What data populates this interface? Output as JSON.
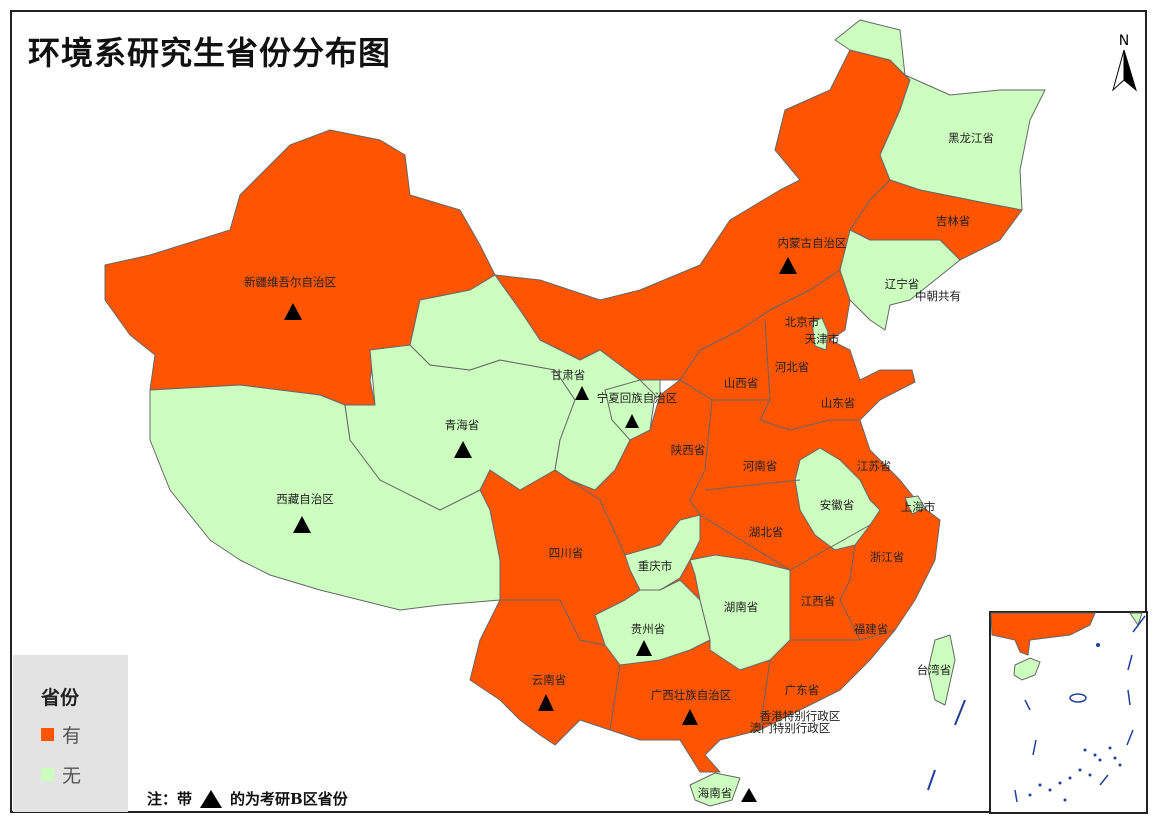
{
  "title": "环境系研究生省份分布图",
  "north_label": "N",
  "colors": {
    "has": "#ff5500",
    "none": "#ccffbf",
    "border": "#666666",
    "sea_islands": "#1f3f99"
  },
  "legend": {
    "title": "省份",
    "items": [
      {
        "label": "有",
        "color": "#ff5500"
      },
      {
        "label": "无",
        "color": "#ccffbf"
      }
    ]
  },
  "note": {
    "prefix": "注：带",
    "suffix": "的为考研B区省份",
    "marker": "triangle"
  },
  "provinces": [
    {
      "name": "黑龙江省",
      "has": false,
      "b_zone": false
    },
    {
      "name": "吉林省",
      "has": true,
      "b_zone": false
    },
    {
      "name": "内蒙古自治区",
      "has": true,
      "b_zone": true
    },
    {
      "name": "辽宁省",
      "has": false,
      "b_zone": false
    },
    {
      "name": "中朝共有",
      "has": false,
      "b_zone": false
    },
    {
      "name": "新疆维吾尔自治区",
      "has": true,
      "b_zone": true
    },
    {
      "name": "北京市",
      "has": true,
      "b_zone": false
    },
    {
      "name": "天津市",
      "has": false,
      "b_zone": false
    },
    {
      "name": "甘肃省",
      "has": false,
      "b_zone": true
    },
    {
      "name": "宁夏回族自治区",
      "has": false,
      "b_zone": true
    },
    {
      "name": "山西省",
      "has": true,
      "b_zone": false
    },
    {
      "name": "河北省",
      "has": true,
      "b_zone": false
    },
    {
      "name": "山东省",
      "has": true,
      "b_zone": false
    },
    {
      "name": "青海省",
      "has": false,
      "b_zone": true
    },
    {
      "name": "陕西省",
      "has": true,
      "b_zone": false
    },
    {
      "name": "河南省",
      "has": true,
      "b_zone": false
    },
    {
      "name": "江苏省",
      "has": true,
      "b_zone": false
    },
    {
      "name": "西藏自治区",
      "has": false,
      "b_zone": true
    },
    {
      "name": "安徽省",
      "has": false,
      "b_zone": false
    },
    {
      "name": "上海市",
      "has": false,
      "b_zone": false
    },
    {
      "name": "湖北省",
      "has": true,
      "b_zone": false
    },
    {
      "name": "四川省",
      "has": true,
      "b_zone": false
    },
    {
      "name": "浙江省",
      "has": true,
      "b_zone": false
    },
    {
      "name": "重庆市",
      "has": false,
      "b_zone": false
    },
    {
      "name": "江西省",
      "has": true,
      "b_zone": false
    },
    {
      "name": "湖南省",
      "has": false,
      "b_zone": false
    },
    {
      "name": "贵州省",
      "has": false,
      "b_zone": true
    },
    {
      "name": "福建省",
      "has": true,
      "b_zone": false
    },
    {
      "name": "台湾省",
      "has": false,
      "b_zone": false
    },
    {
      "name": "云南省",
      "has": true,
      "b_zone": true
    },
    {
      "name": "广东省",
      "has": true,
      "b_zone": false
    },
    {
      "name": "广西壮族自治区",
      "has": true,
      "b_zone": true
    },
    {
      "name": "香港特别行政区",
      "has": true,
      "b_zone": false
    },
    {
      "name": "澳门特别行政区",
      "has": true,
      "b_zone": false
    },
    {
      "name": "海南省",
      "has": false,
      "b_zone": true
    }
  ]
}
